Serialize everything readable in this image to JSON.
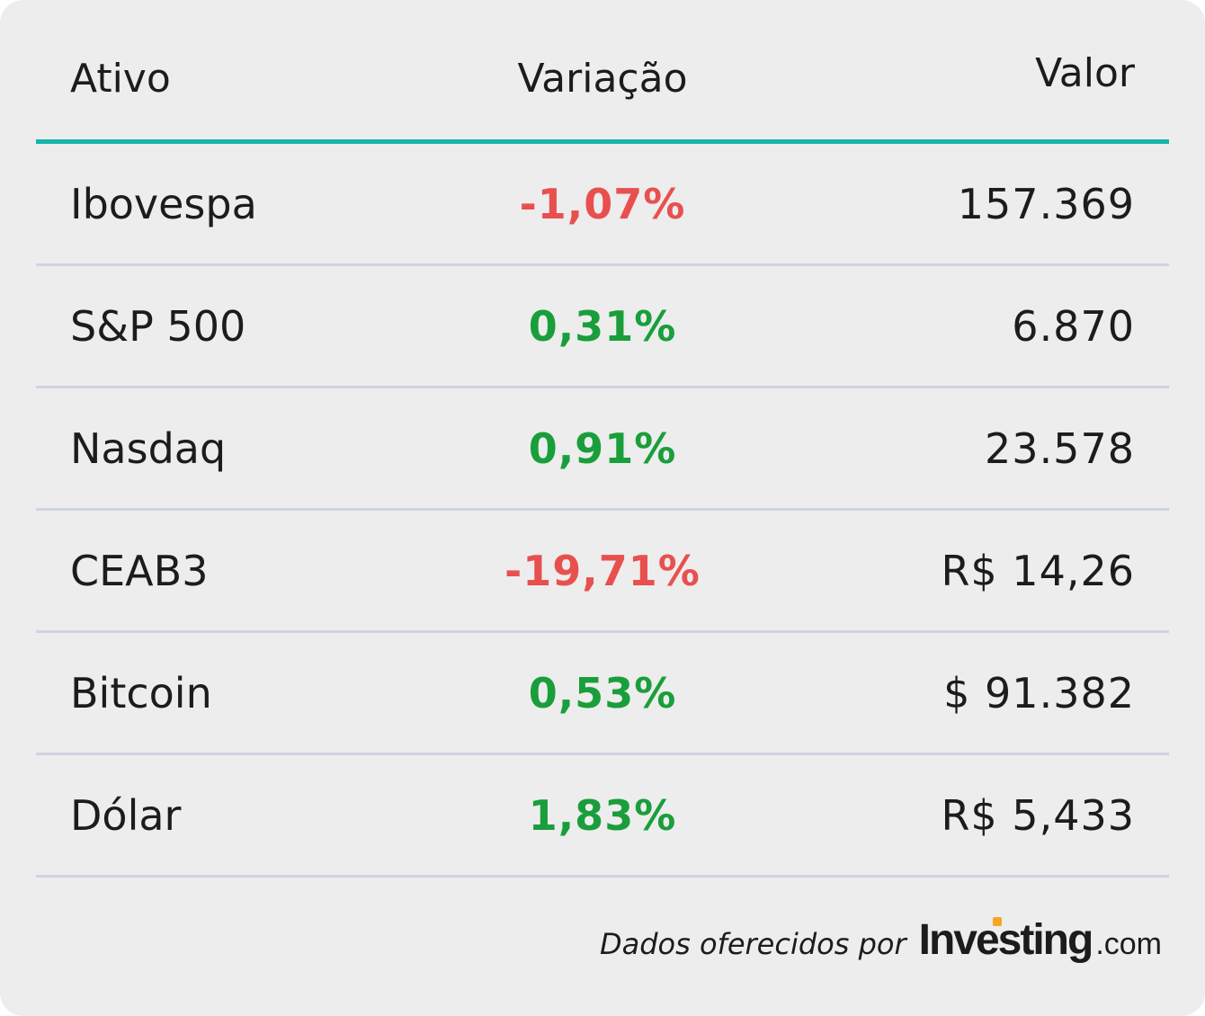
{
  "chart_data": {
    "type": "table",
    "columns": [
      "Ativo",
      "Variação",
      "Valor"
    ],
    "rows": [
      {
        "asset": "Ibovespa",
        "change": "-1,07%",
        "direction": "neg",
        "value": "157.369"
      },
      {
        "asset": "S&P 500",
        "change": "0,31%",
        "direction": "pos",
        "value": "6.870"
      },
      {
        "asset": "Nasdaq",
        "change": "0,91%",
        "direction": "pos",
        "value": "23.578"
      },
      {
        "asset": "CEAB3",
        "change": "-19,71%",
        "direction": "neg",
        "value": "R$ 14,26"
      },
      {
        "asset": "Bitcoin",
        "change": "0,53%",
        "direction": "pos",
        "value": "$ 91.382"
      },
      {
        "asset": "Dólar",
        "change": "1,83%",
        "direction": "pos",
        "value": "R$ 5,433"
      }
    ]
  },
  "footer": {
    "text": "Dados oferecidos por",
    "brand": "Investing",
    "brand_tld": ".com"
  },
  "colors": {
    "accent": "#16b5aa",
    "positive": "#1a9e3b",
    "negative": "#e8504f",
    "brand_dot": "#f5a623"
  }
}
